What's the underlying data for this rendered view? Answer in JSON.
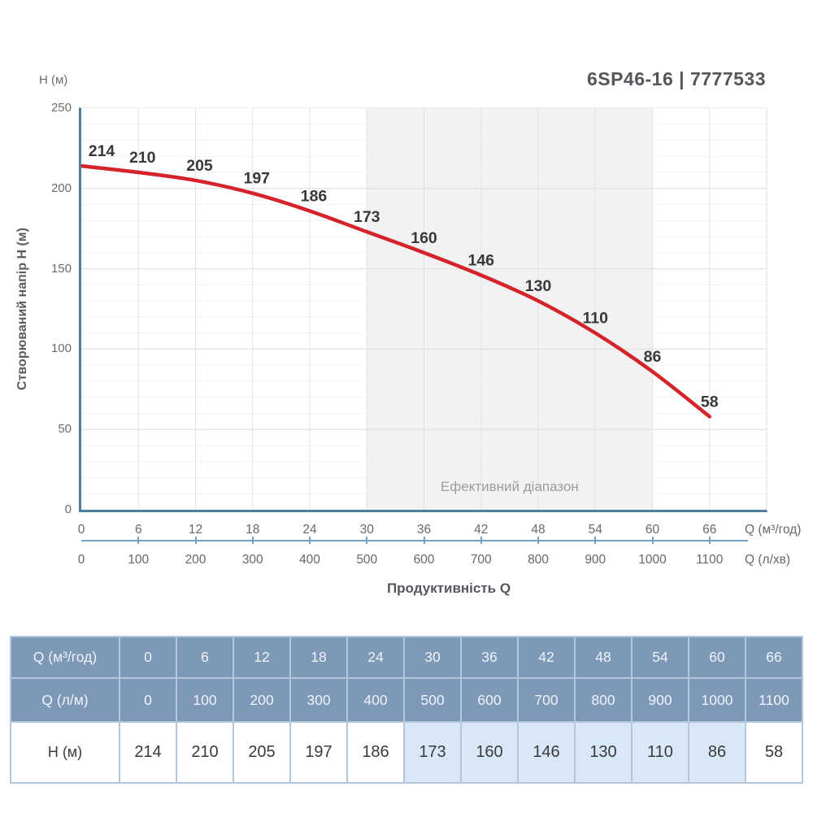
{
  "title": "6SP46-16 | 7777533",
  "colors": {
    "curve": "#d5232b",
    "axis": "#4d7e9d",
    "tick_line": "#71a2c1",
    "grid_major": "#dcdcdc",
    "grid_minor": "#f3f3f3",
    "grid_vertical": "#e3e3e3",
    "effective_range_bg": "#f2f2f2",
    "effective_range_text": "#9c9c9c",
    "point_label_text": "#39393b",
    "table_header_bg": "#7e99b8",
    "table_highlight_bg": "#d9e8f8"
  },
  "chart": {
    "y_axis_title": "H (м)",
    "y_axis_label": "Створюваний напір H (м)",
    "x_axis_caption": "Продуктивність Q",
    "x_unit_primary": "Q (м³/год)",
    "x_unit_secondary": "Q (л/хв)",
    "effective_range_label": "Ефективний діапазон"
  },
  "chart_data": {
    "type": "line",
    "title": "6SP46-16 | 7777533",
    "x_m3_hour": [
      0,
      6,
      12,
      18,
      24,
      30,
      36,
      42,
      48,
      54,
      60,
      66
    ],
    "x_l_min": [
      0,
      100,
      200,
      300,
      400,
      500,
      600,
      700,
      800,
      900,
      1000,
      1100
    ],
    "head_m": [
      214,
      210,
      205,
      197,
      186,
      173,
      160,
      146,
      130,
      110,
      86,
      58
    ],
    "xlabel": "Продуктивність Q",
    "ylabel": "Створюваний напір H (м)",
    "xlim": [
      0,
      72
    ],
    "ylim": [
      0,
      250
    ],
    "y_ticks": [
      0,
      50,
      100,
      150,
      200,
      250
    ],
    "y_minor_step": 10,
    "x_major_step": 6,
    "grid": true,
    "effective_range_x": [
      30,
      60
    ],
    "legend": "none"
  },
  "table": {
    "rows": [
      {
        "label": "Q (м³/год)",
        "header": true,
        "values": [
          "0",
          "6",
          "12",
          "18",
          "24",
          "30",
          "36",
          "42",
          "48",
          "54",
          "60",
          "66"
        ]
      },
      {
        "label": "Q (л/м)",
        "header": true,
        "values": [
          "0",
          "100",
          "200",
          "300",
          "400",
          "500",
          "600",
          "700",
          "800",
          "900",
          "1000",
          "1100"
        ]
      },
      {
        "label": "H (м)",
        "header": false,
        "values": [
          "214",
          "210",
          "205",
          "197",
          "186",
          "173",
          "160",
          "146",
          "130",
          "110",
          "86",
          "58"
        ],
        "highlight_columns": [
          5,
          6,
          7,
          8,
          9,
          10
        ]
      }
    ]
  }
}
